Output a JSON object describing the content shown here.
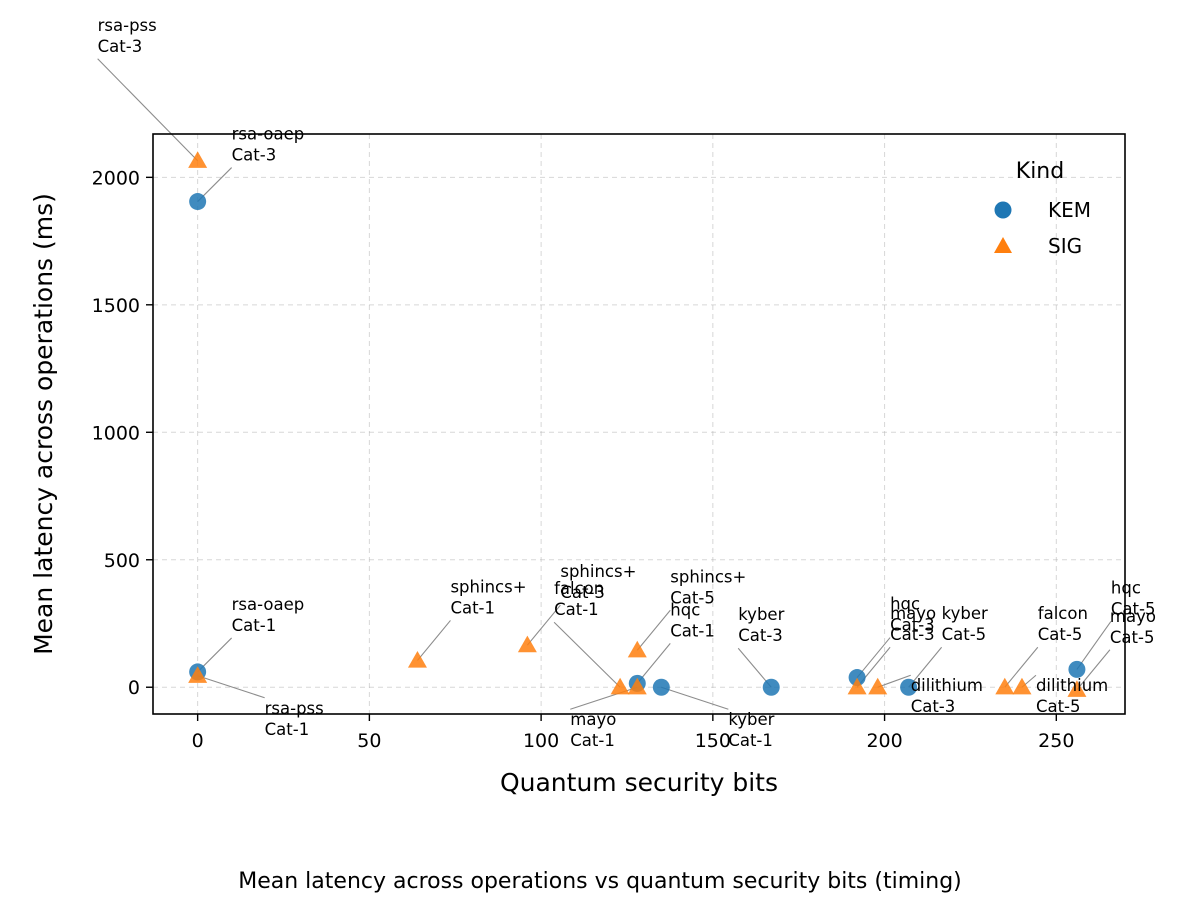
{
  "chart_data": {
    "type": "scatter",
    "title": "Mean latency across operations vs quantum security bits (timing)",
    "xlabel": "Quantum security bits",
    "ylabel": "Mean latency across operations (ms)",
    "xlim": [
      -13,
      270
    ],
    "ylim": [
      -105,
      2170
    ],
    "xticks": [
      0,
      50,
      100,
      150,
      200,
      250
    ],
    "yticks": [
      0,
      500,
      1000,
      1500,
      2000
    ],
    "grid": true,
    "legend": {
      "title": "Kind",
      "position": "top-right",
      "entries": [
        {
          "name": "KEM",
          "marker": "circle",
          "color": "#1f77b4"
        },
        {
          "name": "SIG",
          "marker": "triangle",
          "color": "#ff7f0e"
        }
      ]
    },
    "series": [
      {
        "name": "KEM",
        "marker": "circle",
        "color": "#1f77b4",
        "points": [
          {
            "x": 0,
            "y": 1905,
            "label": [
              "rsa-oaep",
              "Cat-3"
            ]
          },
          {
            "x": 0,
            "y": 60,
            "label": [
              "rsa-oaep",
              "Cat-1"
            ]
          },
          {
            "x": 128,
            "y": 15,
            "label": [
              "hqc",
              "Cat-1"
            ]
          },
          {
            "x": 135,
            "y": 0,
            "label": [
              "kyber",
              "Cat-1"
            ]
          },
          {
            "x": 167,
            "y": 0,
            "label": [
              "kyber",
              "Cat-3"
            ]
          },
          {
            "x": 192,
            "y": 38,
            "label": [
              "hqc",
              "Cat-3"
            ]
          },
          {
            "x": 207,
            "y": 0,
            "label": [
              "kyber",
              "Cat-5"
            ]
          },
          {
            "x": 256,
            "y": 70,
            "label": [
              "hqc",
              "Cat-5"
            ]
          }
        ]
      },
      {
        "name": "SIG",
        "marker": "triangle",
        "color": "#ff7f0e",
        "points": [
          {
            "x": 0,
            "y": 2065,
            "label": [
              "rsa-pss",
              "Cat-3"
            ]
          },
          {
            "x": 0,
            "y": 45,
            "label": [
              "rsa-pss",
              "Cat-1"
            ]
          },
          {
            "x": 64,
            "y": 105,
            "label": [
              "sphincs+",
              "Cat-1"
            ]
          },
          {
            "x": 96,
            "y": 165,
            "label": [
              "sphincs+",
              "Cat-3"
            ]
          },
          {
            "x": 123,
            "y": 0,
            "label": [
              "falcon",
              "Cat-1"
            ]
          },
          {
            "x": 128,
            "y": 0,
            "label": [
              "mayo",
              "Cat-1"
            ]
          },
          {
            "x": 128,
            "y": 145,
            "label": [
              "sphincs+",
              "Cat-5"
            ]
          },
          {
            "x": 192,
            "y": 0,
            "label": [
              "mayo",
              "Cat-3"
            ]
          },
          {
            "x": 198,
            "y": 0,
            "label": [
              "dilithium",
              "Cat-3"
            ]
          },
          {
            "x": 235,
            "y": 0,
            "label": [
              "falcon",
              "Cat-5"
            ]
          },
          {
            "x": 240,
            "y": 0,
            "label": [
              "dilithium",
              "Cat-5"
            ]
          },
          {
            "x": 256,
            "y": -10,
            "label": [
              "mayo",
              "Cat-5"
            ]
          }
        ]
      }
    ]
  }
}
